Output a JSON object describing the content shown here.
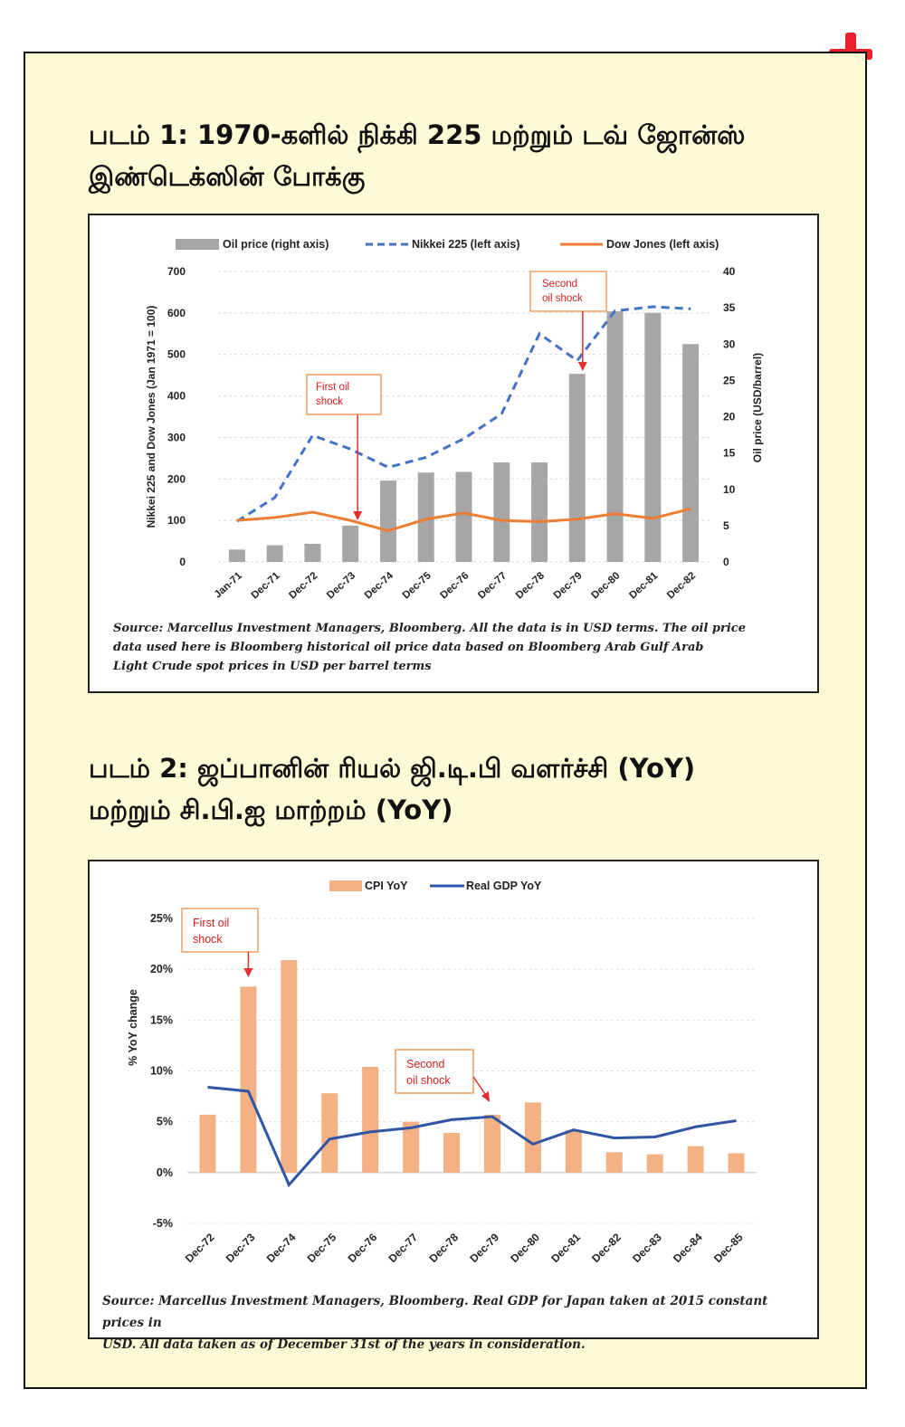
{
  "figure1": {
    "title_line1": "படம் 1: 1970-களில் நிக்கி 225 மற்றும் டவ் ஜோன்ஸ்",
    "title_line2": "இண்டெக்ஸின் போக்கு",
    "source_lines": [
      "Source: Marcellus Investment Managers, Bloomberg. All the data is in USD terms. The oil price",
      "data used here is Bloomberg historical oil price data based on Bloomberg Arab Gulf Arab",
      "Light Crude spot prices in USD per barrel terms"
    ]
  },
  "figure2": {
    "title_line1": "படம் 2: ஜப்பானின் ரியல் ஜி.டி.பி வளர்ச்சி (YoY)",
    "title_line2": "மற்றும் சி.பி.ஐ மாற்றம் (YoY)",
    "source_lines": [
      "Source: Marcellus Investment Managers, Bloomberg. Real GDP for Japan taken at 2015 constant prices in",
      "USD. All data taken as of December 31st of the years in consideration."
    ]
  },
  "chart_data": [
    {
      "type": "bar",
      "categories": [
        "Jan-71",
        "Dec-71",
        "Dec-72",
        "Dec-73",
        "Dec-74",
        "Dec-75",
        "Dec-76",
        "Dec-77",
        "Dec-78",
        "Dec-79",
        "Dec-80",
        "Dec-81",
        "Dec-82"
      ],
      "series": [
        {
          "name": "Oil price (right axis)",
          "type": "bar",
          "axis": "right",
          "color": "#a6a6a6",
          "values": [
            1.7,
            2.3,
            2.5,
            5.0,
            11.2,
            12.3,
            12.4,
            13.7,
            13.7,
            25.9,
            34.5,
            34.3,
            30.0
          ]
        },
        {
          "name": "Nikkei 225 (left axis)",
          "type": "line",
          "style": "dashed",
          "axis": "left",
          "color": "#4472c4",
          "values": [
            98,
            155,
            305,
            272,
            228,
            252,
            297,
            357,
            550,
            485,
            605,
            615,
            610
          ]
        },
        {
          "name": "Dow Jones (left axis)",
          "type": "line",
          "style": "solid",
          "axis": "left",
          "color": "#ed7d31",
          "values": [
            100,
            107,
            120,
            100,
            75,
            103,
            118,
            100,
            97,
            103,
            116,
            105,
            128
          ]
        }
      ],
      "ylabel": "Nikkei 225 and Dow Jones (Jan 1971 = 100)",
      "y2label": "Oil price (USD/barrel)",
      "ylim": [
        0,
        700
      ],
      "yticks": [
        "0",
        "100",
        "200",
        "300",
        "400",
        "500",
        "600",
        "700"
      ],
      "y2lim": [
        0,
        40
      ],
      "y2ticks": [
        "0",
        "5",
        "10",
        "15",
        "20",
        "25",
        "30",
        "35",
        "40"
      ],
      "grid": true,
      "legend": "top",
      "annotations": [
        {
          "text_lines": [
            "First oil",
            "shock"
          ],
          "category": "Dec-73"
        },
        {
          "text_lines": [
            "Second",
            "oil shock"
          ],
          "category": "Dec-79"
        }
      ]
    },
    {
      "type": "bar",
      "categories": [
        "Dec-72",
        "Dec-73",
        "Dec-74",
        "Dec-75",
        "Dec-76",
        "Dec-77",
        "Dec-78",
        "Dec-79",
        "Dec-80",
        "Dec-81",
        "Dec-82",
        "Dec-83",
        "Dec-84",
        "Dec-85"
      ],
      "series": [
        {
          "name": "CPI YoY",
          "type": "bar",
          "color": "#f4b183",
          "values": [
            5.7,
            18.3,
            20.9,
            7.8,
            10.4,
            5.0,
            3.9,
            5.7,
            6.9,
            4.2,
            2.0,
            1.8,
            2.6,
            1.9
          ]
        },
        {
          "name": "Real GDP YoY",
          "type": "line",
          "color": "#2f55a4",
          "values": [
            8.4,
            8.0,
            -1.2,
            3.3,
            4.0,
            4.4,
            5.2,
            5.5,
            2.8,
            4.2,
            3.4,
            3.5,
            4.5,
            5.1
          ]
        }
      ],
      "ylabel": "% YoY change",
      "ylim": [
        -5,
        25
      ],
      "yticks": [
        "-5%",
        "0%",
        "5%",
        "10%",
        "15%",
        "20%",
        "25%"
      ],
      "grid": true,
      "legend": "top",
      "annotations": [
        {
          "text_lines": [
            "First oil",
            "shock"
          ],
          "category": "Dec-73"
        },
        {
          "text_lines": [
            "Second",
            "oil shock"
          ],
          "category": "Dec-79"
        }
      ]
    }
  ]
}
